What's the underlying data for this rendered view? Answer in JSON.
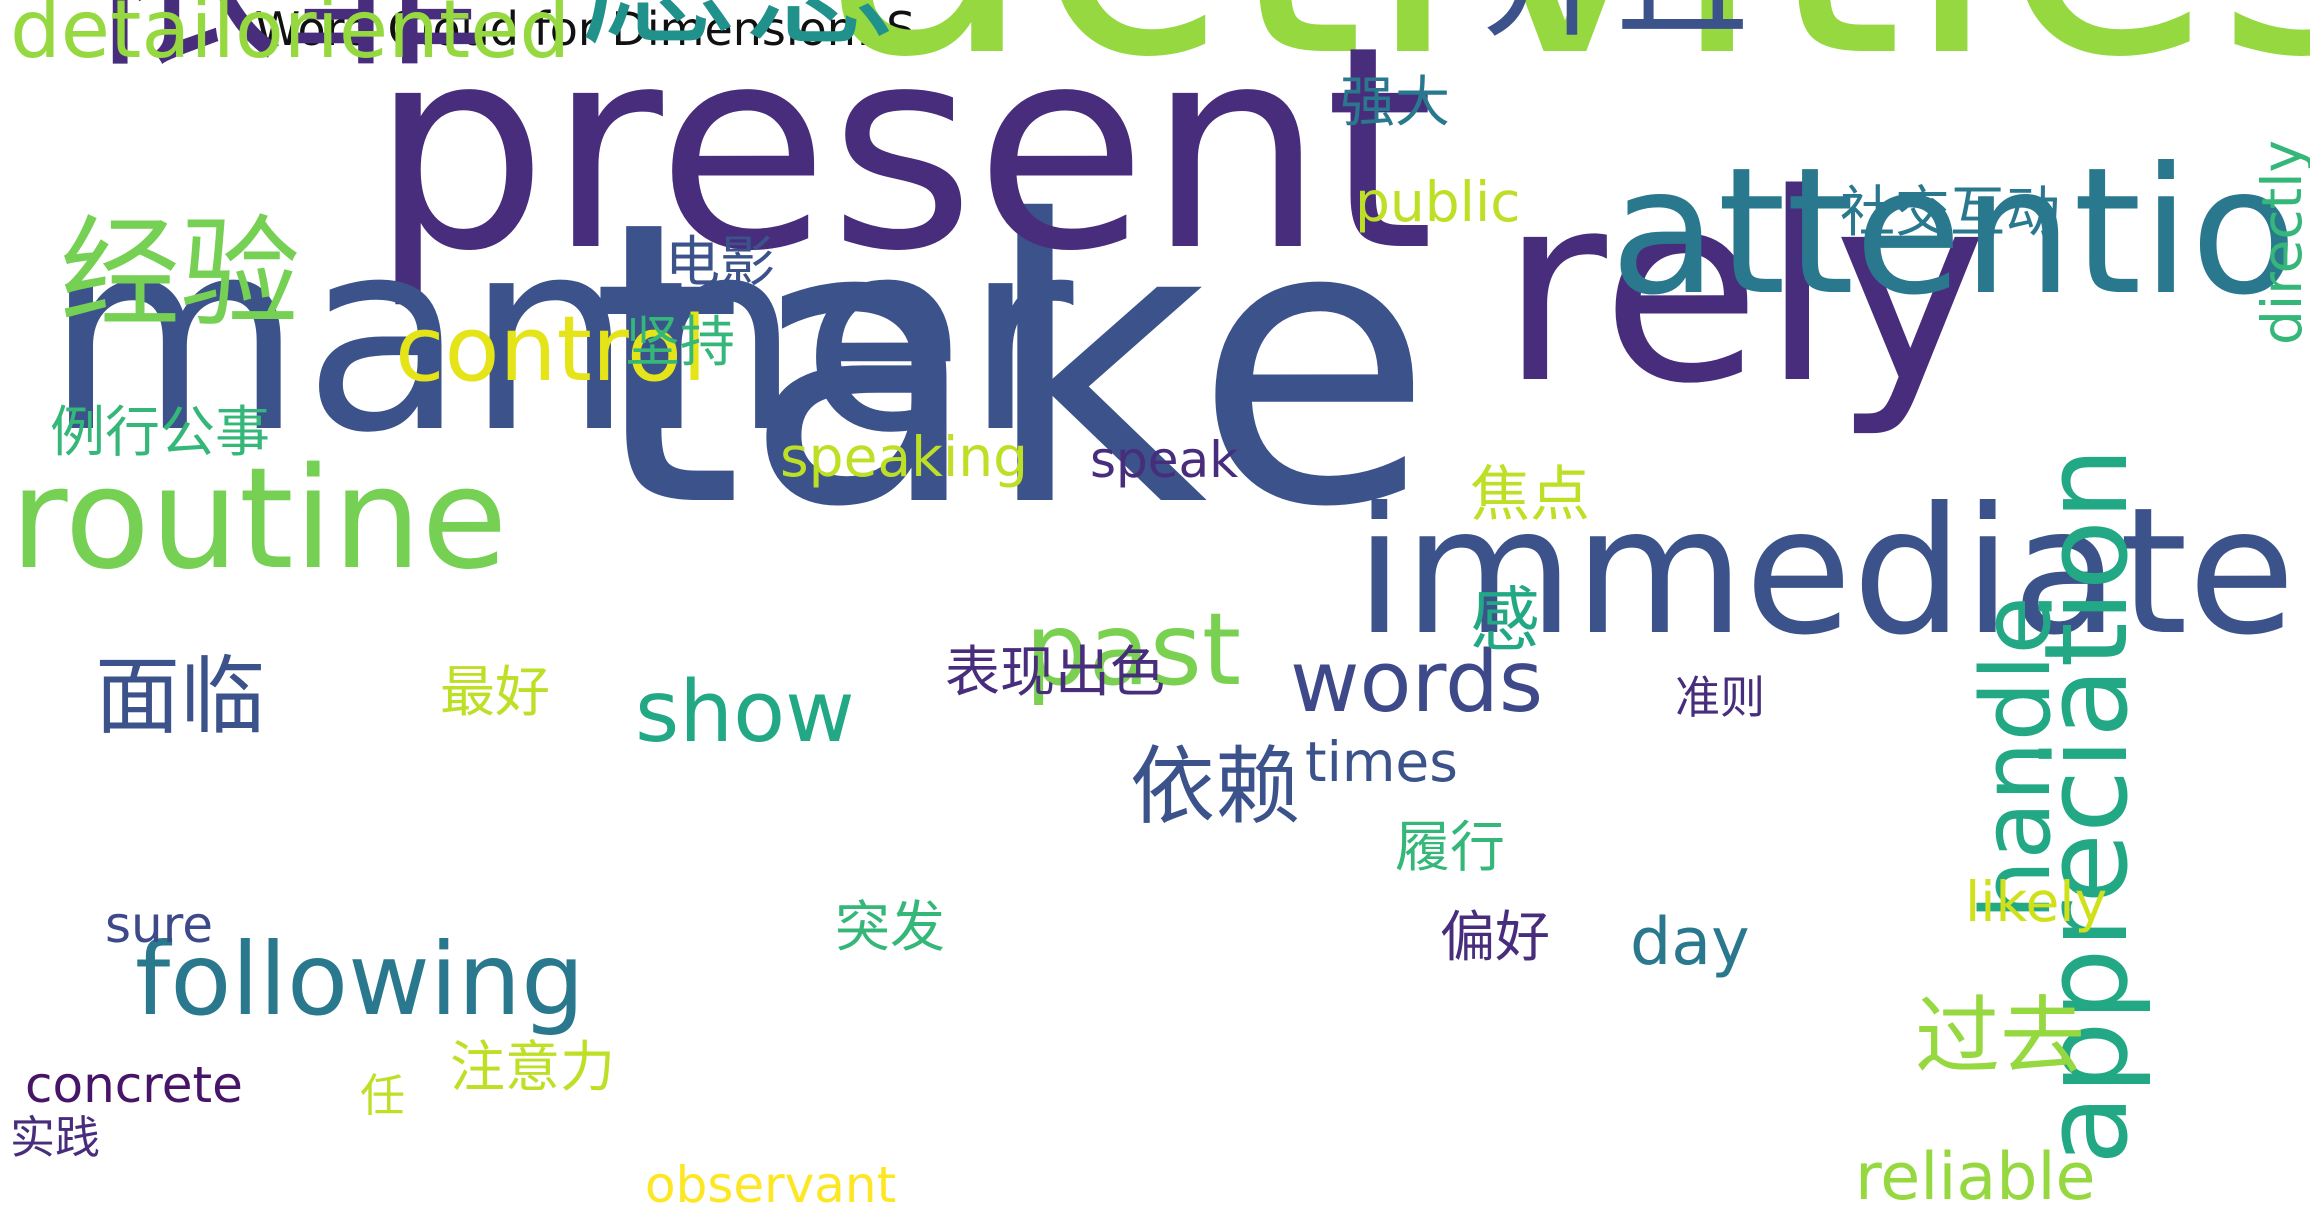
{
  "title": "Word Cloud for Dimension: S",
  "words": [
    {
      "text": "activities",
      "color": "#95d840"
    },
    {
      "text": "take",
      "color": "#3b528b"
    },
    {
      "text": "present",
      "color": "#472d7b"
    },
    {
      "text": "manner",
      "color": "#3b528b"
    },
    {
      "text": "rely",
      "color": "#472d7b"
    },
    {
      "text": "依靠",
      "color": "#472d7b"
    },
    {
      "text": "attention",
      "color": "#2a788e"
    },
    {
      "text": "immediate",
      "color": "#3b528b"
    },
    {
      "text": "愿意",
      "color": "#21918c"
    },
    {
      "text": "并且",
      "color": "#3b528b"
    },
    {
      "text": "routine",
      "color": "#75d054"
    },
    {
      "text": "经验",
      "color": "#75d054"
    },
    {
      "text": "appreciation",
      "color": "#22a884"
    },
    {
      "text": "following",
      "color": "#2a788e"
    },
    {
      "text": "detailoriented",
      "color": "#95d840"
    },
    {
      "text": "handle",
      "color": "#22a884"
    },
    {
      "text": "past",
      "color": "#7ad151"
    },
    {
      "text": "control",
      "color": "#e5e419"
    },
    {
      "text": "面临",
      "color": "#3b528b"
    },
    {
      "text": "依赖",
      "color": "#3b528b"
    },
    {
      "text": "words",
      "color": "#3e4989"
    },
    {
      "text": "show",
      "color": "#22a884"
    },
    {
      "text": "过去",
      "color": "#95d840"
    },
    {
      "text": "reliable",
      "color": "#95d840"
    },
    {
      "text": "表现出色",
      "color": "#472d7b"
    },
    {
      "text": "感",
      "color": "#22a884"
    },
    {
      "text": "焦点",
      "color": "#bddf26"
    },
    {
      "text": "社交互动",
      "color": "#2a788e"
    },
    {
      "text": "强大",
      "color": "#2a788e"
    },
    {
      "text": "例行公事",
      "color": "#35b779"
    },
    {
      "text": "concrete",
      "color": "#481467"
    },
    {
      "text": "directly",
      "color": "#35b779"
    },
    {
      "text": "day",
      "color": "#2a788e"
    },
    {
      "text": "observant",
      "color": "#fde725"
    },
    {
      "text": "坚持",
      "color": "#35b779"
    },
    {
      "text": "电影",
      "color": "#3b528b"
    },
    {
      "text": "public",
      "color": "#bddf26"
    },
    {
      "text": "speaking",
      "color": "#bddf26"
    },
    {
      "text": "speak",
      "color": "#472d7b"
    },
    {
      "text": "times",
      "color": "#3b528b"
    },
    {
      "text": "履行",
      "color": "#35b779"
    },
    {
      "text": "偏好",
      "color": "#472d7b"
    },
    {
      "text": "突发",
      "color": "#35b779"
    },
    {
      "text": "likely",
      "color": "#d0e11c"
    },
    {
      "text": "最好",
      "color": "#bddf26"
    },
    {
      "text": "准则",
      "color": "#472d7b"
    },
    {
      "text": "注意力",
      "color": "#bddf26"
    },
    {
      "text": "sure",
      "color": "#3e4989"
    },
    {
      "text": "任",
      "color": "#bddf26"
    },
    {
      "text": "实践",
      "color": "#472d7b"
    }
  ]
}
